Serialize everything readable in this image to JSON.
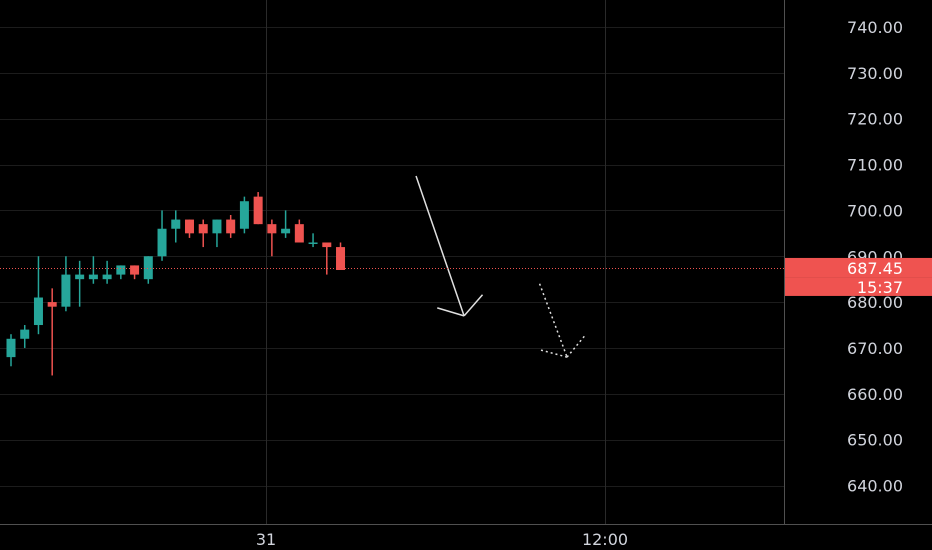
{
  "chart_data": {
    "type": "candlestick",
    "title": "",
    "xlabel": "",
    "ylabel": "",
    "ylim": [
      633,
      747
    ],
    "y_ticks": [
      "740.00",
      "730.00",
      "720.00",
      "710.00",
      "700.00",
      "690.00",
      "680.00",
      "670.00",
      "660.00",
      "650.00",
      "640.00"
    ],
    "y_tick_values": [
      740,
      730,
      720,
      710,
      700,
      690,
      680,
      670,
      660,
      650,
      640
    ],
    "x_tick_labels": [
      "31",
      "12:00"
    ],
    "grid": true,
    "last_price": "687.45",
    "last_price_value": 687.45,
    "countdown": "15:37",
    "colors": {
      "background": "#000000",
      "up": "#26a69a",
      "down": "#ef5350",
      "grid": "#1c1c1c",
      "axis_text": "#d1d4dc",
      "price_line": "#ef5350",
      "arrow": "#e0e0e0"
    },
    "candles": [
      {
        "o": 668,
        "h": 673,
        "l": 666,
        "c": 672
      },
      {
        "o": 672,
        "h": 675,
        "l": 670,
        "c": 674
      },
      {
        "o": 675,
        "h": 690,
        "l": 673,
        "c": 681
      },
      {
        "o": 680,
        "h": 683,
        "l": 664,
        "c": 679
      },
      {
        "o": 679,
        "h": 690,
        "l": 678,
        "c": 686
      },
      {
        "o": 685,
        "h": 689,
        "l": 679,
        "c": 686
      },
      {
        "o": 685,
        "h": 690,
        "l": 684,
        "c": 686
      },
      {
        "o": 685,
        "h": 689,
        "l": 684,
        "c": 686
      },
      {
        "o": 686,
        "h": 688,
        "l": 685,
        "c": 688
      },
      {
        "o": 688,
        "h": 688,
        "l": 685,
        "c": 686
      },
      {
        "o": 685,
        "h": 690,
        "l": 684,
        "c": 690
      },
      {
        "o": 690,
        "h": 700,
        "l": 689,
        "c": 696
      },
      {
        "o": 696,
        "h": 700,
        "l": 693,
        "c": 698
      },
      {
        "o": 698,
        "h": 698,
        "l": 694,
        "c": 695
      },
      {
        "o": 697,
        "h": 698,
        "l": 692,
        "c": 695
      },
      {
        "o": 695,
        "h": 698,
        "l": 692,
        "c": 698
      },
      {
        "o": 698,
        "h": 699,
        "l": 694,
        "c": 695
      },
      {
        "o": 696,
        "h": 703,
        "l": 695,
        "c": 702
      },
      {
        "o": 703,
        "h": 704,
        "l": 697,
        "c": 697
      },
      {
        "o": 697,
        "h": 698,
        "l": 690,
        "c": 695
      },
      {
        "o": 695,
        "h": 700,
        "l": 694,
        "c": 696
      },
      {
        "o": 697,
        "h": 698,
        "l": 693,
        "c": 693
      },
      {
        "o": 693,
        "h": 695,
        "l": 692,
        "c": 693
      },
      {
        "o": 693,
        "h": 693,
        "l": 686,
        "c": 692
      },
      {
        "o": 692,
        "h": 693,
        "l": 687,
        "c": 687
      }
    ],
    "annotations": [
      {
        "type": "arrow",
        "style": "solid",
        "from": {
          "index": 29.5,
          "price": 707.5
        },
        "to": {
          "index": 33.0,
          "price": 677.0
        }
      },
      {
        "type": "arrow",
        "style": "dotted",
        "from": {
          "index": 38.5,
          "price": 684.0
        },
        "to": {
          "index": 40.5,
          "price": 668.0
        }
      }
    ]
  }
}
